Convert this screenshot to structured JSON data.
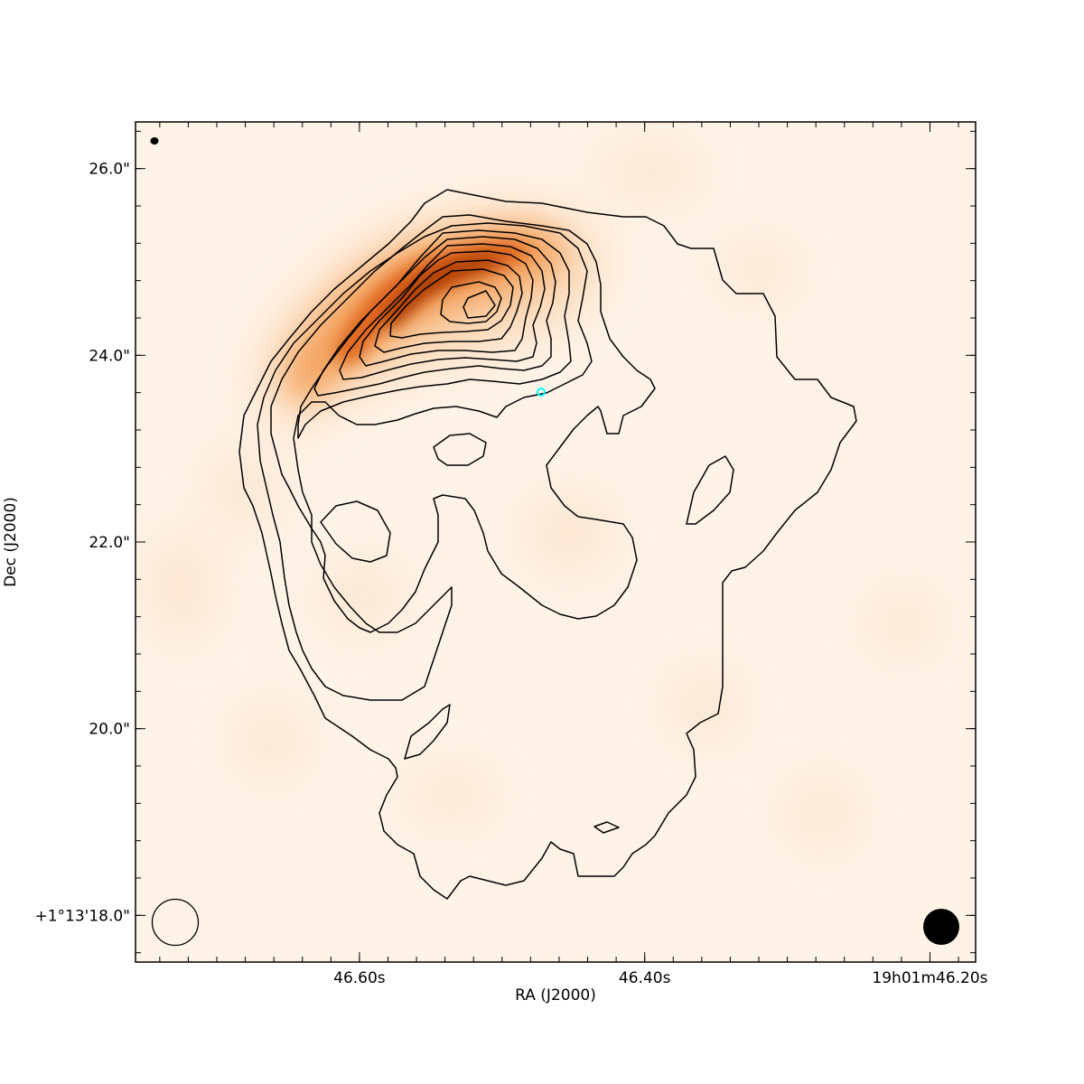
{
  "chart_data": {
    "type": "heatmap",
    "title": "",
    "xlabel": "RA (J2000)",
    "ylabel": "Dec (J2000)",
    "x_axis": {
      "units": "seconds of RA (19h01m)",
      "range": [
        46.757,
        46.168
      ],
      "ticks": [
        {
          "value": 46.6,
          "label": "46.60s"
        },
        {
          "value": 46.4,
          "label": "46.40s"
        },
        {
          "value": 46.2,
          "label": "19h01m46.20s"
        }
      ]
    },
    "y_axis": {
      "units": "arcsec offset from +1°13'",
      "range": [
        17.5,
        26.5
      ],
      "ticks": [
        {
          "value": 18.0,
          "label": "+1°13'18.0\""
        },
        {
          "value": 20.0,
          "label": "20.0\""
        },
        {
          "value": 22.0,
          "label": "22.0\""
        },
        {
          "value": 24.0,
          "label": "24.0\""
        },
        {
          "value": 26.0,
          "label": "26.0\""
        }
      ]
    },
    "colormap": "Oranges",
    "colors": {
      "low": "#fff5eb",
      "mid": "#f08c3c",
      "high": "#7f2704",
      "marker": "#00ffff",
      "contour": "#000000"
    },
    "emission_peak": {
      "ra": 46.52,
      "dec": 24.6
    },
    "marker": {
      "type": "circle",
      "color": "cyan",
      "ra": 46.4656,
      "dec": 23.6
    },
    "beams": {
      "top_left": "small filled ellipse (small beam)",
      "bottom_left": "open circle (contour beam)",
      "bottom_right": "filled circle (image beam)"
    },
    "contour_count": 11,
    "grid": false,
    "legend": "none"
  }
}
